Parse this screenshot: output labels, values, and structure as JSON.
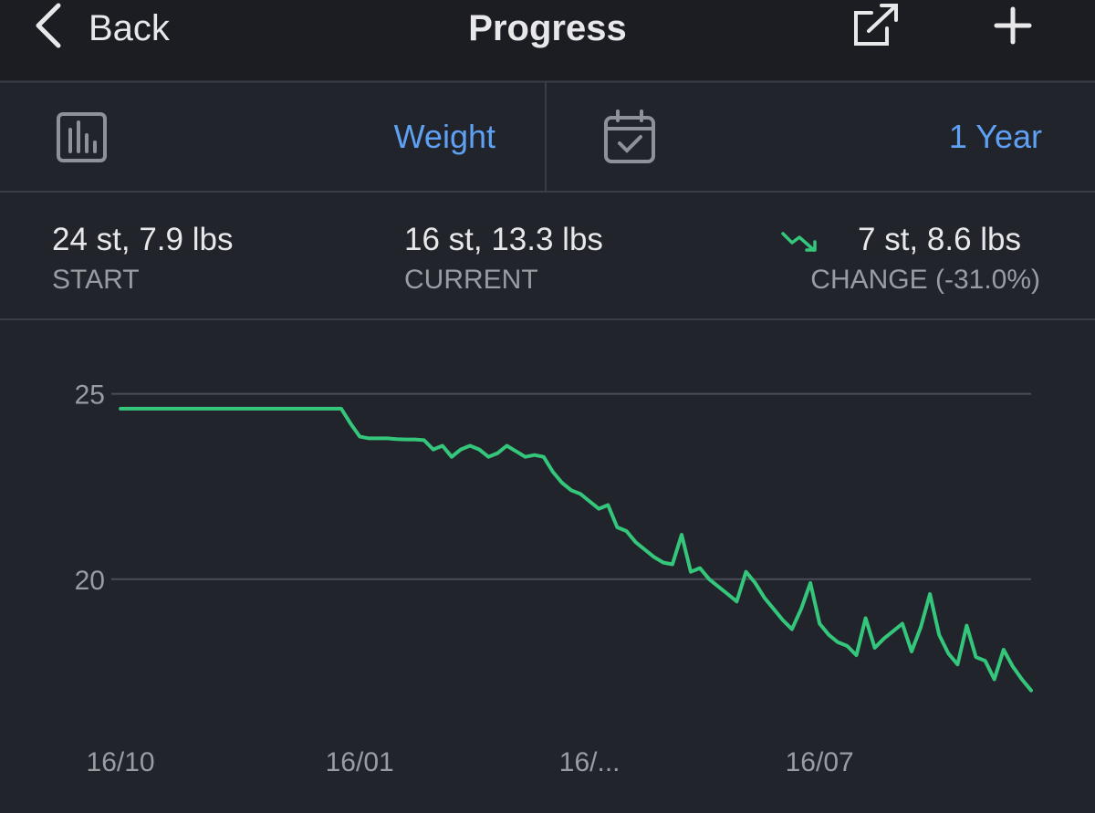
{
  "header": {
    "back": "Back",
    "title": "Progress"
  },
  "selectors": {
    "metric": "Weight",
    "range": "1 Year"
  },
  "stats": [
    {
      "value": "24 st, 7.9 lbs",
      "label": "START"
    },
    {
      "value": "16 st, 13.3 lbs",
      "label": "CURRENT"
    },
    {
      "value": "7 st, 8.6 lbs",
      "label": "CHANGE (-31.0%)"
    }
  ],
  "chart_data": {
    "type": "line",
    "color": "#34c77b",
    "values": [
      24.6,
      24.6,
      24.6,
      24.6,
      24.6,
      24.6,
      24.6,
      24.6,
      24.6,
      24.6,
      24.6,
      24.6,
      24.6,
      24.6,
      24.6,
      24.6,
      24.6,
      24.6,
      24.6,
      24.6,
      24.6,
      24.6,
      24.6,
      24.6,
      24.6,
      24.2,
      23.85,
      23.8,
      23.8,
      23.8,
      23.78,
      23.77,
      23.77,
      23.75,
      23.5,
      23.6,
      23.3,
      23.5,
      23.6,
      23.5,
      23.3,
      23.4,
      23.6,
      23.45,
      23.3,
      23.35,
      23.3,
      22.9,
      22.6,
      22.4,
      22.3,
      22.1,
      21.9,
      22.0,
      21.4,
      21.3,
      21.0,
      20.8,
      20.6,
      20.45,
      20.4,
      21.2,
      20.2,
      20.3,
      20.0,
      19.8,
      19.6,
      19.4,
      20.2,
      19.9,
      19.5,
      19.2,
      18.9,
      18.65,
      19.2,
      19.9,
      18.8,
      18.5,
      18.3,
      18.2,
      17.95,
      18.95,
      18.15,
      18.4,
      18.6,
      18.8,
      18.05,
      18.7,
      19.6,
      18.5,
      18.0,
      17.7,
      18.75,
      17.9,
      17.8,
      17.3,
      18.1,
      17.65,
      17.3,
      17.0
    ],
    "xlim": [
      -1,
      99
    ],
    "xticks": [
      {
        "value": 0,
        "label": "16/10"
      },
      {
        "value": 26,
        "label": "16/01"
      },
      {
        "value": 51,
        "label": "16/..."
      },
      {
        "value": 76,
        "label": "16/07"
      }
    ],
    "ylim": [
      16.5,
      26
    ],
    "yticks": [
      20,
      25
    ],
    "grid": true
  }
}
